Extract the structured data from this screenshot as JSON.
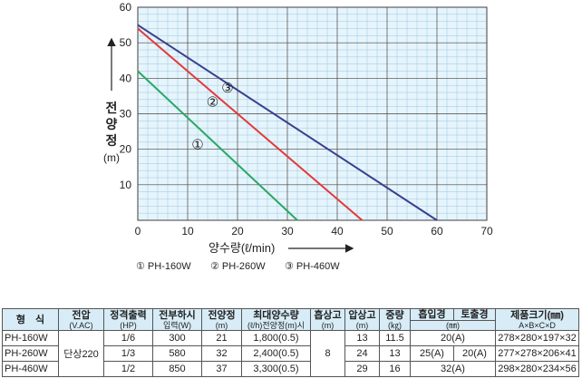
{
  "chart_data": {
    "type": "line",
    "xlabel": "양수량(ℓ/min)",
    "ylabel_chars": [
      "전",
      "양",
      "정"
    ],
    "ylabel_unit": "(m)",
    "xlim": [
      0,
      70
    ],
    "ylim": [
      0,
      60
    ],
    "xticks": [
      0,
      10,
      20,
      30,
      40,
      50,
      60,
      70
    ],
    "yticks": [
      10,
      20,
      30,
      40,
      50,
      60
    ],
    "grid": true,
    "series": [
      {
        "name": "PH-160W",
        "marker": "①",
        "color": "#2aa862",
        "x": [
          0,
          32
        ],
        "y": [
          42,
          0
        ]
      },
      {
        "name": "PH-260W",
        "marker": "②",
        "color": "#e23a3a",
        "x": [
          0,
          45
        ],
        "y": [
          54,
          0
        ]
      },
      {
        "name": "PH-460W",
        "marker": "③",
        "color": "#3a3f8c",
        "x": [
          0,
          60
        ],
        "y": [
          55,
          0
        ]
      }
    ],
    "legend": [
      "① PH-160W",
      "② PH-260W",
      "③ PH-460W"
    ]
  },
  "table": {
    "headers": [
      {
        "main": "형　식",
        "sub": ""
      },
      {
        "main": "전압",
        "sub": "(V.AC)"
      },
      {
        "main": "정격출력",
        "sub": "(HP)"
      },
      {
        "main": "전부하시",
        "sub": "입력(W)"
      },
      {
        "main": "전양정",
        "sub": "(m)"
      },
      {
        "main": "최대양수량",
        "sub": "(ℓ/h)전양정(m)시"
      },
      {
        "main": "흡상고",
        "sub": "(m)"
      },
      {
        "main": "압상고",
        "sub": "(m)"
      },
      {
        "main": "중량",
        "sub": "(㎏)"
      },
      {
        "main": "흡입경",
        "sub": ""
      },
      {
        "main": "토출경",
        "sub": ""
      },
      {
        "main": "제품크기(㎜)",
        "sub": "A×B×C×D"
      }
    ],
    "bore_unit": "(㎜)",
    "voltage": "단상220",
    "suction_height": "8",
    "rows": [
      {
        "model": "PH-160W",
        "hp": "1/6",
        "watt": "300",
        "head": "21",
        "flow": "1,800(0.5)",
        "push": "13",
        "weight": "11.5",
        "bore": "20(A)",
        "size": "278×280×197×32"
      },
      {
        "model": "PH-260W",
        "hp": "1/3",
        "watt": "580",
        "head": "32",
        "flow": "2,400(0.5)",
        "push": "24",
        "weight": "13",
        "inlet": "25(A)",
        "outlet": "20(A)",
        "size": "277×278×206×41"
      },
      {
        "model": "PH-460W",
        "hp": "1/2",
        "watt": "850",
        "head": "37",
        "flow": "3,300(0.5)",
        "push": "29",
        "weight": "16",
        "bore": "32(A)",
        "size": "298×280×234×56"
      }
    ]
  }
}
